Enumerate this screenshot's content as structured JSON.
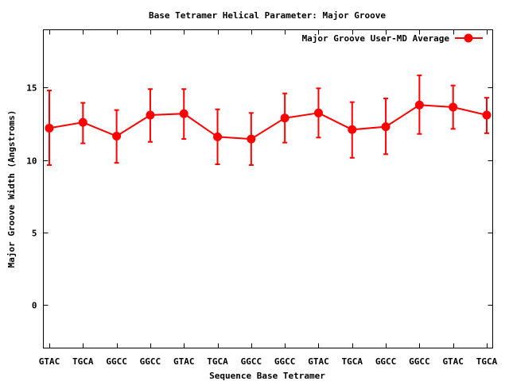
{
  "chart_data": {
    "type": "line",
    "title": "Base Tetramer Helical Parameter: Major Groove",
    "xlabel": "Sequence Base Tetramer",
    "ylabel": "Major Groove Width (Angstroms)",
    "ylim": [
      -3,
      19
    ],
    "yticks": [
      0,
      5,
      10,
      15
    ],
    "grid": false,
    "legend_position": "top-right",
    "categories": [
      "GTAC",
      "TGCA",
      "GGCC",
      "GGCC",
      "GTAC",
      "TGCA",
      "GGCC",
      "GGCC",
      "GTAC",
      "TGCA",
      "GGCC",
      "GGCC",
      "GTAC",
      "TGCA"
    ],
    "series": [
      {
        "name": "Major Groove User-MD Average",
        "color": "#ff0000",
        "values": [
          12.2,
          12.6,
          11.65,
          13.1,
          13.2,
          11.6,
          11.45,
          12.9,
          13.25,
          12.1,
          12.3,
          13.8,
          13.65,
          13.1
        ],
        "err_low": [
          9.65,
          11.15,
          9.8,
          11.25,
          11.45,
          9.7,
          9.65,
          11.2,
          11.55,
          10.15,
          10.4,
          11.8,
          12.15,
          11.85
        ],
        "err_high": [
          14.8,
          13.95,
          13.45,
          14.9,
          14.9,
          13.5,
          13.25,
          14.6,
          14.95,
          14.0,
          14.25,
          15.85,
          15.15,
          14.3
        ]
      }
    ]
  }
}
